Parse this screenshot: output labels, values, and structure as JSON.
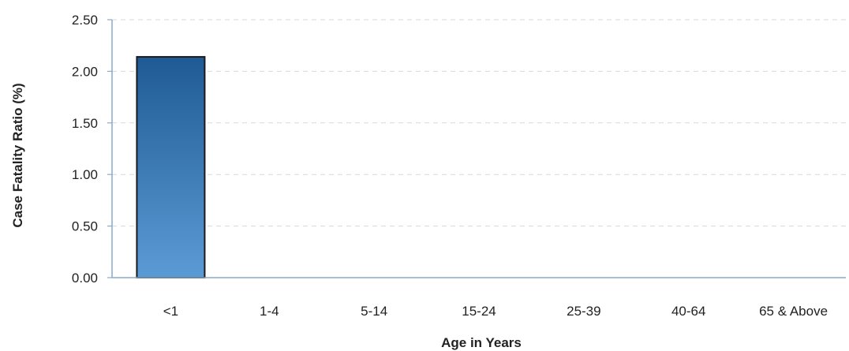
{
  "chart_data": {
    "type": "bar",
    "title": "",
    "xlabel": "Age in Years",
    "ylabel": "Case Fatality Ratio (%)",
    "categories": [
      "<1",
      "1-4",
      "5-14",
      "15-24",
      "25-39",
      "40-64",
      "65 & Above"
    ],
    "values": [
      2.14,
      0,
      0,
      0,
      0,
      0,
      0
    ],
    "ylim": [
      0,
      2.5
    ],
    "yticks": [
      "0.00",
      "0.50",
      "1.00",
      "1.50",
      "2.00",
      "2.50"
    ],
    "grid": true,
    "legend": "none",
    "colors": {
      "bar_top": "#1f5a94",
      "bar_bottom": "#5b9bd5",
      "bar_edge": "#1a1a1a",
      "axis": "#8aaac8"
    }
  }
}
